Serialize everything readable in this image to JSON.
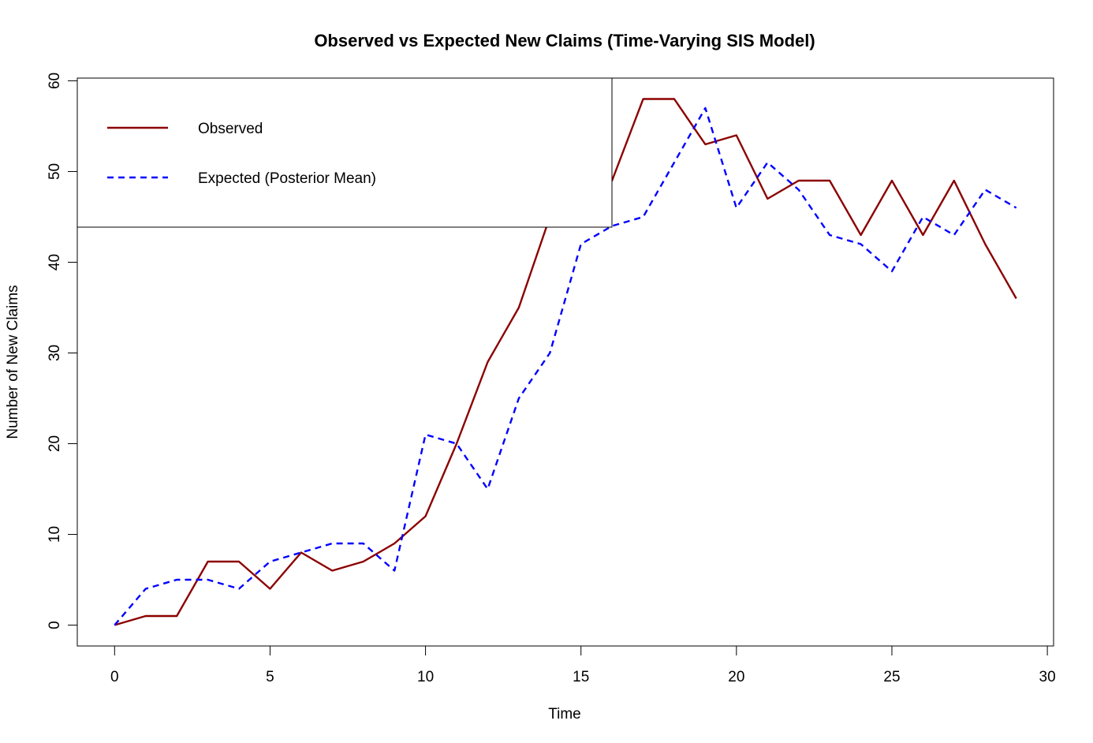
{
  "chart_data": {
    "type": "line",
    "title": "Observed vs Expected New Claims (Time-Varying SIS Model)",
    "xlabel": "Time",
    "ylabel": "Number of New Claims",
    "xlim": [
      -1.2,
      30.2
    ],
    "ylim": [
      -2.3,
      60.3
    ],
    "xticks": [
      0,
      5,
      10,
      15,
      20,
      25,
      30
    ],
    "yticks": [
      0,
      10,
      20,
      30,
      40,
      50,
      60
    ],
    "grid": false,
    "legend_position": "top-left",
    "x": [
      0,
      1,
      2,
      3,
      4,
      5,
      6,
      7,
      8,
      9,
      10,
      11,
      12,
      13,
      14,
      15,
      16,
      17,
      18,
      19,
      20,
      21,
      22,
      23,
      24,
      25,
      26,
      27,
      28,
      29
    ],
    "series": [
      {
        "name": "Observed",
        "color": "#8b0000",
        "style": "solid",
        "values": [
          0,
          1,
          1,
          7,
          7,
          4,
          8,
          6,
          7,
          9,
          12,
          20,
          29,
          35,
          45,
          47,
          49,
          58,
          58,
          53,
          54,
          47,
          49,
          49,
          43,
          49,
          43,
          49,
          42,
          36
        ]
      },
      {
        "name": "Expected (Posterior Mean)",
        "color": "#0000ff",
        "style": "dashed",
        "values": [
          0,
          4,
          5,
          5,
          4,
          7,
          8,
          9,
          9,
          6,
          21,
          20,
          15,
          25,
          30,
          42,
          44,
          45,
          51,
          57,
          46,
          51,
          48,
          43,
          42,
          39,
          45,
          43,
          48,
          46
        ]
      }
    ]
  }
}
